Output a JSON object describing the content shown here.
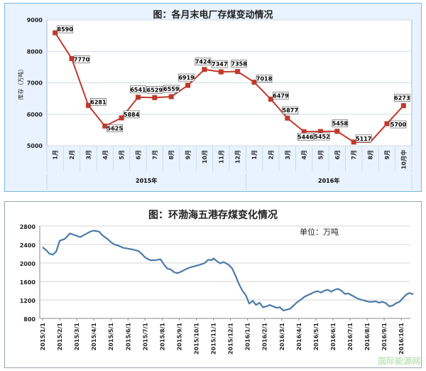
{
  "charts": [
    {
      "title": "图：各月末电厂存煤变动情况",
      "type": "line",
      "ylabel": "库存（万吨）",
      "yrange": [
        5000,
        9000
      ],
      "yticks": [
        "5000",
        "6000",
        "7000",
        "8000",
        "9000"
      ],
      "categories": [
        "1月",
        "2月",
        "3月",
        "4月",
        "5月",
        "6月",
        "7月",
        "8月",
        "9月",
        "10月",
        "11月",
        "12月",
        "1月",
        "2月",
        "3月",
        "4月",
        "5月",
        "6月",
        "7月",
        "8月",
        "9月",
        "10月中"
      ],
      "groups": [
        {
          "label": "2015年",
          "span": 12
        },
        {
          "label": "2016年",
          "span": 10
        }
      ],
      "labels": [
        "8590",
        "7770",
        "6281",
        "5625",
        "5884",
        "6541",
        "6529",
        "6559",
        "6919",
        "7424",
        "7347",
        "7358",
        "7018",
        "6479",
        "5877",
        "5446",
        "5452",
        "5458",
        "5117",
        "",
        "5700",
        "6273"
      ],
      "values": [
        8590,
        7770,
        6281,
        5625,
        5884,
        6541,
        6529,
        6559,
        6919,
        7424,
        7347,
        7358,
        7018,
        6479,
        5877,
        5446,
        5452,
        5458,
        5117,
        5117,
        5700,
        6273
      ],
      "color": "#c0392b",
      "grid": true
    },
    {
      "title": "图：环渤海五港存煤变化情况",
      "type": "line",
      "unit": "单位：万吨",
      "yrange": [
        800,
        2800
      ],
      "yticks": [
        "800",
        "1200",
        "1600",
        "2000",
        "2400",
        "2800"
      ],
      "xticks": [
        "2015/1/1",
        "2015/2/1",
        "2015/3/1",
        "2015/4/1",
        "2015/5/1",
        "2015/6/1",
        "2015/7/1",
        "2015/8/1",
        "2015/9/1",
        "2015/10/1",
        "2015/11/1",
        "2015/12/1",
        "2016/1/1",
        "2016/2/1",
        "2016/3/1",
        "2016/4/1",
        "2016/5/1",
        "2016/6/1",
        "2016/7/1",
        "2016/8/1",
        "2016/9/1",
        "2016/10/1"
      ],
      "points": [
        [
          0,
          2340
        ],
        [
          0.2,
          2280
        ],
        [
          0.4,
          2200
        ],
        [
          0.6,
          2180
        ],
        [
          0.8,
          2250
        ],
        [
          1.0,
          2480
        ],
        [
          1.3,
          2520
        ],
        [
          1.6,
          2640
        ],
        [
          1.9,
          2600
        ],
        [
          2.2,
          2560
        ],
        [
          2.5,
          2620
        ],
        [
          2.8,
          2680
        ],
        [
          3.0,
          2700
        ],
        [
          3.3,
          2680
        ],
        [
          3.5,
          2600
        ],
        [
          3.8,
          2520
        ],
        [
          4.0,
          2450
        ],
        [
          4.2,
          2400
        ],
        [
          4.4,
          2380
        ],
        [
          4.7,
          2330
        ],
        [
          5.0,
          2310
        ],
        [
          5.3,
          2290
        ],
        [
          5.6,
          2260
        ],
        [
          5.8,
          2200
        ],
        [
          6.0,
          2120
        ],
        [
          6.3,
          2060
        ],
        [
          6.6,
          2060
        ],
        [
          6.9,
          2080
        ],
        [
          7.1,
          1970
        ],
        [
          7.3,
          1880
        ],
        [
          7.5,
          1860
        ],
        [
          7.7,
          1800
        ],
        [
          7.9,
          1780
        ],
        [
          8.1,
          1810
        ],
        [
          8.3,
          1850
        ],
        [
          8.6,
          1900
        ],
        [
          8.9,
          1930
        ],
        [
          9.2,
          1960
        ],
        [
          9.5,
          2000
        ],
        [
          9.7,
          2070
        ],
        [
          9.9,
          2060
        ],
        [
          10.0,
          2100
        ],
        [
          10.2,
          2040
        ],
        [
          10.4,
          1990
        ],
        [
          10.6,
          2020
        ],
        [
          10.9,
          1960
        ],
        [
          11.1,
          1880
        ],
        [
          11.3,
          1720
        ],
        [
          11.5,
          1540
        ],
        [
          11.7,
          1400
        ],
        [
          11.9,
          1300
        ],
        [
          12.1,
          1120
        ],
        [
          12.3,
          1180
        ],
        [
          12.5,
          1090
        ],
        [
          12.7,
          1140
        ],
        [
          12.9,
          1040
        ],
        [
          13.1,
          1060
        ],
        [
          13.3,
          1090
        ],
        [
          13.5,
          1060
        ],
        [
          13.7,
          1030
        ],
        [
          13.9,
          1040
        ],
        [
          14.1,
          970
        ],
        [
          14.3,
          990
        ],
        [
          14.5,
          1010
        ],
        [
          14.7,
          1080
        ],
        [
          14.9,
          1150
        ],
        [
          15.1,
          1200
        ],
        [
          15.3,
          1260
        ],
        [
          15.5,
          1300
        ],
        [
          15.7,
          1330
        ],
        [
          15.9,
          1370
        ],
        [
          16.1,
          1390
        ],
        [
          16.3,
          1360
        ],
        [
          16.5,
          1400
        ],
        [
          16.7,
          1420
        ],
        [
          16.9,
          1380
        ],
        [
          17.1,
          1420
        ],
        [
          17.3,
          1440
        ],
        [
          17.5,
          1400
        ],
        [
          17.7,
          1330
        ],
        [
          17.9,
          1340
        ],
        [
          18.1,
          1300
        ],
        [
          18.3,
          1260
        ],
        [
          18.5,
          1220
        ],
        [
          18.7,
          1200
        ],
        [
          18.9,
          1180
        ],
        [
          19.1,
          1160
        ],
        [
          19.3,
          1160
        ],
        [
          19.5,
          1170
        ],
        [
          19.7,
          1140
        ],
        [
          19.9,
          1160
        ],
        [
          20.1,
          1130
        ],
        [
          20.3,
          1060
        ],
        [
          20.5,
          1080
        ],
        [
          20.7,
          1130
        ],
        [
          20.9,
          1160
        ],
        [
          21.1,
          1240
        ],
        [
          21.3,
          1320
        ],
        [
          21.5,
          1350
        ],
        [
          21.7,
          1320
        ]
      ],
      "color": "#4a7aa8",
      "grid": true
    }
  ],
  "watermark": "国际能源网"
}
